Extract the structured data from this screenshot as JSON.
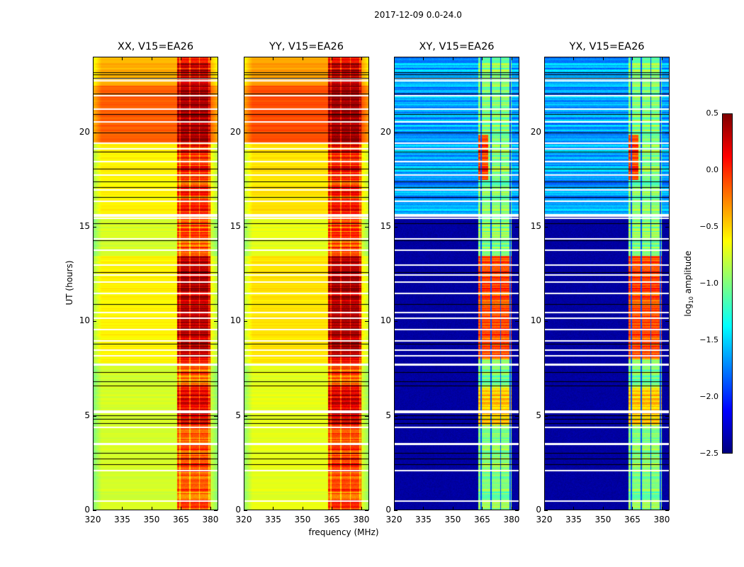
{
  "chart_data": {
    "type": "heatmap",
    "title": "2017-12-09 0.0-24.0",
    "xlabel": "frequency (MHz)",
    "ylabel": "UT (hours)",
    "xlim": [
      320,
      384
    ],
    "ylim": [
      0,
      24
    ],
    "xticks": [
      "320",
      "335",
      "350",
      "365",
      "380"
    ],
    "xtick_values": [
      320,
      335,
      350,
      365,
      380
    ],
    "yticks": [
      "0",
      "5",
      "10",
      "15",
      "20"
    ],
    "ytick_values": [
      0,
      5,
      10,
      15,
      20
    ],
    "colorbar": {
      "label": "log10 amplitude",
      "label_main": "log",
      "label_sub": "10",
      "label_rest": " amplitude",
      "range": [
        -2.5,
        0.5
      ],
      "ticks": [
        "0.5",
        "0.0",
        "−0.5",
        "−1.0",
        "−1.5",
        "−2.0",
        "−2.5"
      ],
      "tick_values": [
        0.5,
        0.0,
        -0.5,
        -1.0,
        -1.5,
        -2.0,
        -2.5
      ],
      "colormap": "jet"
    },
    "rfi_band_mhz": [
      363,
      380
    ],
    "flagged_rows_hours": [
      0.5,
      2.1,
      3.5,
      3.55,
      4.4,
      5.2,
      5.25,
      7.7,
      7.75,
      8.2,
      8.5,
      9.0,
      9.6,
      10.2,
      10.5,
      11.5,
      12.1,
      12.5,
      13.0,
      13.8,
      14.4,
      15.5,
      15.6,
      15.7,
      16.4,
      17.0,
      17.8,
      18.5,
      19.2,
      19.5,
      20.6,
      21.3,
      22.0,
      22.8,
      22.9
    ],
    "black_rows_hours": [
      2.4,
      2.7,
      3.0,
      4.6,
      4.8,
      5.0,
      6.6,
      6.8,
      7.3,
      8.8,
      10.9,
      12.6,
      14.3,
      15.2,
      16.6,
      17.1,
      17.4,
      18.1,
      19.0,
      20.0,
      21.0,
      22.1,
      22.9,
      23.1,
      23.2
    ],
    "panels": [
      {
        "name": "XX",
        "title": "XX, V15=EA26",
        "baseline": "V15=EA26",
        "polarization": "XX",
        "background_level": -0.75,
        "rfi_level": 0.0
      },
      {
        "name": "YY",
        "title": "YY, V15=EA26",
        "baseline": "V15=EA26",
        "polarization": "YY",
        "background_level": -0.7,
        "rfi_level": -0.05
      },
      {
        "name": "XY",
        "title": "XY, V15=EA26",
        "baseline": "V15=EA26",
        "polarization": "XY",
        "background_level": -2.4,
        "rfi_level": -0.9
      },
      {
        "name": "YX",
        "title": "YX, V15=EA26",
        "baseline": "V15=EA26",
        "polarization": "YX",
        "background_level": -2.4,
        "rfi_level": -0.9
      }
    ]
  }
}
